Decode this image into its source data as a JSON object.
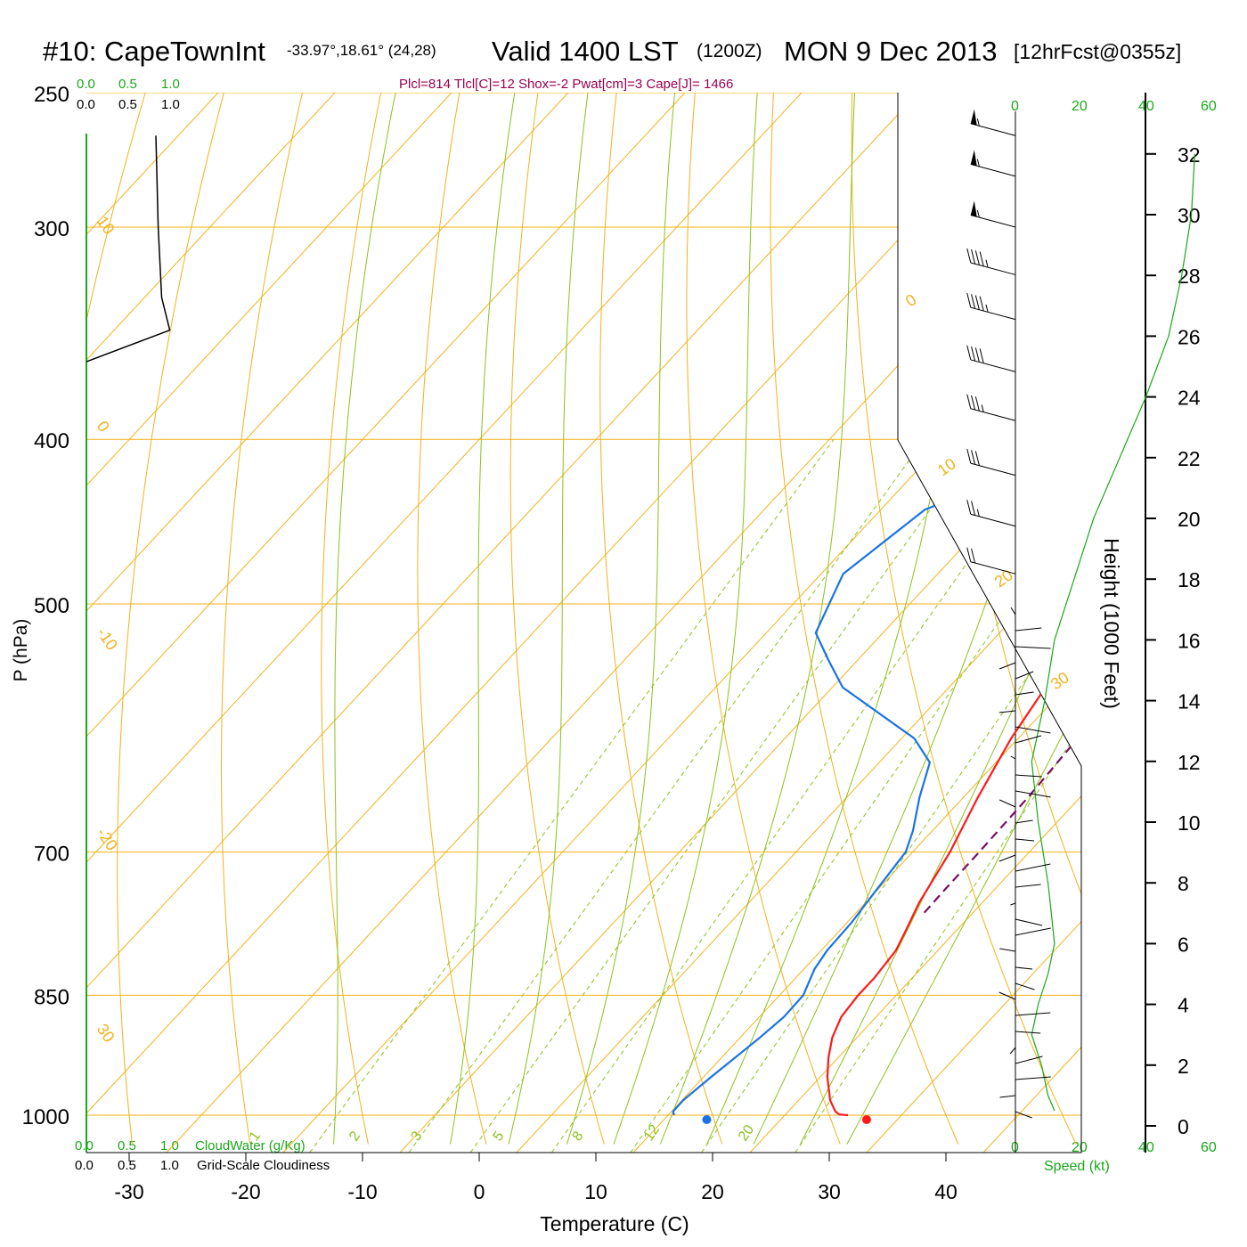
{
  "header": {
    "station": "#10: CapeTownInt",
    "location": "-33.97°,18.61° (24,28)",
    "valid": "Valid 1400 LST",
    "zulu": "(1200Z)",
    "date": "MON 9 Dec 2013",
    "forecast": "[12hrFcst@0355z]"
  },
  "indices": "Plcl=814 Tlcl[C]=12 Shox=-2 Pwat[cm]=3 Cape[J]= 1466",
  "colors": {
    "isobar": "#f2b21a",
    "dry_adiabat": "#f2b21a",
    "moist_adiabat": "#8cc21a",
    "mixing_ratio": "#8cc21a",
    "temperature": "#ff1a1a",
    "dewpoint": "#1a73e6",
    "parcel": "#7a1060",
    "green_text": "#19a819",
    "header_text": "#000000",
    "indices_text": "#990050"
  },
  "cloud_scale": {
    "top_green": [
      "0.0",
      "0.5",
      "1.0"
    ],
    "top_black": [
      "0.0",
      "0.5",
      "1.0"
    ],
    "bottom_green": [
      "0.0",
      "0.5",
      "1.0"
    ],
    "bottom_black": [
      "0.0",
      "0.5",
      "1.0"
    ],
    "cloudwater_label": "CloudWater (g/Kg)",
    "cloudiness_label": "Grid-Scale Cloudiness"
  },
  "wind_speed_scale": {
    "ticks": [
      "0",
      "20",
      "40",
      "60"
    ],
    "label": "Speed (kt)"
  },
  "chart_data": {
    "type": "line",
    "xlabel": "Temperature (C)",
    "ylabel": "P (hPa)",
    "y2label": "Height (1000 Feet)",
    "xlim": [
      -33.5,
      46
    ],
    "ylim": [
      1030,
      250
    ],
    "x_ticks": [
      -30,
      -20,
      -10,
      0,
      10,
      20,
      30,
      40
    ],
    "pressure_ticks": [
      250,
      300,
      400,
      500,
      700,
      850,
      1000
    ],
    "height_ticks": [
      0,
      2,
      4,
      6,
      8,
      10,
      12,
      14,
      16,
      18,
      20,
      22,
      24,
      26,
      28,
      30,
      32
    ],
    "dry_adiabat_labels": [
      "10",
      "0",
      "-10",
      "-20",
      "30",
      "0",
      "10",
      "20",
      "30"
    ],
    "mixing_ratio_labels": [
      "1",
      "2",
      "3",
      "5",
      "8",
      "12",
      "20"
    ],
    "series": [
      {
        "points": [
          {
            "p": 1000,
            "t": 31.6
          },
          {
            "p": 999,
            "t": 30.8
          },
          {
            "p": 995,
            "t": 30.2
          },
          {
            "p": 980,
            "t": 28.8
          },
          {
            "p": 950,
            "t": 26.6
          },
          {
            "p": 925,
            "t": 25.0
          },
          {
            "p": 900,
            "t": 23.6
          },
          {
            "p": 875,
            "t": 22.6
          },
          {
            "p": 850,
            "t": 22.2
          },
          {
            "p": 830,
            "t": 22.1
          },
          {
            "p": 800,
            "t": 21.6
          },
          {
            "p": 780,
            "t": 20.8
          },
          {
            "p": 750,
            "t": 19.5
          },
          {
            "p": 700,
            "t": 17.8
          },
          {
            "p": 650,
            "t": 15.5
          },
          {
            "p": 600,
            "t": 13.3
          },
          {
            "p": 550,
            "t": 11.5
          },
          {
            "p": 500,
            "t": 10.0
          },
          {
            "p": 450,
            "t": 8.3
          },
          {
            "p": 400,
            "t": 6.2
          },
          {
            "p": 350,
            "t": 4.5
          },
          {
            "p": 340,
            "t": 4.0
          },
          {
            "p": 320,
            "t": 1.7
          },
          {
            "p": 300,
            "t": -0.2
          },
          {
            "p": 280,
            "t": -1.2
          },
          {
            "p": 265,
            "t": -2.0
          }
        ]
      },
      {
        "points": [
          {
            "p": 1000,
            "t": 16.7
          },
          {
            "p": 995,
            "t": 16.3
          },
          {
            "p": 980,
            "t": 16.2
          },
          {
            "p": 950,
            "t": 16.6
          },
          {
            "p": 900,
            "t": 17.4
          },
          {
            "p": 875,
            "t": 17.7
          },
          {
            "p": 850,
            "t": 17.5
          },
          {
            "p": 820,
            "t": 16.2
          },
          {
            "p": 800,
            "t": 15.7
          },
          {
            "p": 770,
            "t": 15.4
          },
          {
            "p": 740,
            "t": 14.8
          },
          {
            "p": 700,
            "t": 14.0
          },
          {
            "p": 680,
            "t": 12.8
          },
          {
            "p": 650,
            "t": 10.5
          },
          {
            "p": 620,
            "t": 8.4
          },
          {
            "p": 600,
            "t": 5.0
          },
          {
            "p": 560,
            "t": -5.5
          },
          {
            "p": 540,
            "t": -9.0
          },
          {
            "p": 520,
            "t": -12.5
          },
          {
            "p": 480,
            "t": -15.2
          },
          {
            "p": 440,
            "t": -13.7
          },
          {
            "p": 400,
            "t": -3.9
          },
          {
            "p": 370,
            "t": 1.3
          },
          {
            "p": 360,
            "t": 1.2
          },
          {
            "p": 345,
            "t": 1.2
          },
          {
            "p": 320,
            "t": -1.0
          },
          {
            "p": 300,
            "t": -2.8
          },
          {
            "p": 280,
            "t": -4.3
          },
          {
            "p": 265,
            "t": -5.8
          }
        ]
      },
      {
        "points": [
          {
            "p": 760,
            "t": 20.8
          },
          {
            "p": 740,
            "t": 20.6
          },
          {
            "p": 700,
            "t": 20.3
          },
          {
            "p": 650,
            "t": 19.8
          },
          {
            "p": 600,
            "t": 19.0
          },
          {
            "p": 550,
            "t": 17.8
          },
          {
            "p": 500,
            "t": 15.8
          },
          {
            "p": 450,
            "t": 13.2
          },
          {
            "p": 400,
            "t": 10.2
          },
          {
            "p": 350,
            "t": 7.0
          },
          {
            "p": 300,
            "t": 4.0
          },
          {
            "p": 265,
            "t": 2.0
          }
        ]
      }
    ],
    "dewpoint_surface_marker": {
      "p": 1000,
      "t": 19.5
    },
    "temperature_surface_marker": {
      "p": 1000,
      "t": 33.2
    },
    "wind_barbs": [
      {
        "p": 265,
        "speed_kt": 55,
        "dir": 285
      },
      {
        "p": 280,
        "speed_kt": 55,
        "dir": 285
      },
      {
        "p": 300,
        "speed_kt": 55,
        "dir": 285
      },
      {
        "p": 320,
        "speed_kt": 45,
        "dir": 285
      },
      {
        "p": 340,
        "speed_kt": 45,
        "dir": 285
      },
      {
        "p": 365,
        "speed_kt": 40,
        "dir": 285
      },
      {
        "p": 390,
        "speed_kt": 35,
        "dir": 280
      },
      {
        "p": 420,
        "speed_kt": 30,
        "dir": 280
      },
      {
        "p": 450,
        "speed_kt": 25,
        "dir": 280
      },
      {
        "p": 480,
        "speed_kt": 20,
        "dir": 280
      }
    ],
    "wind_profile": [
      {
        "h": 0.5,
        "speed": 12
      },
      {
        "h": 1.0,
        "speed": 10
      },
      {
        "h": 2.0,
        "speed": 8
      },
      {
        "h": 3.0,
        "speed": 5
      },
      {
        "h": 4.0,
        "speed": 7
      },
      {
        "h": 5.0,
        "speed": 10
      },
      {
        "h": 6.0,
        "speed": 12
      },
      {
        "h": 7.0,
        "speed": 11
      },
      {
        "h": 8.0,
        "speed": 10
      },
      {
        "h": 10.0,
        "speed": 7
      },
      {
        "h": 12.0,
        "speed": 5
      },
      {
        "h": 14.0,
        "speed": 9
      },
      {
        "h": 16.0,
        "speed": 12
      },
      {
        "h": 18.0,
        "speed": 18
      },
      {
        "h": 20.0,
        "speed": 24
      },
      {
        "h": 22.0,
        "speed": 32
      },
      {
        "h": 24.0,
        "speed": 40
      },
      {
        "h": 26.0,
        "speed": 47
      },
      {
        "h": 28.0,
        "speed": 51
      },
      {
        "h": 30.0,
        "speed": 54
      },
      {
        "h": 32.0,
        "speed": 55
      }
    ],
    "cloudiness_profile": [
      {
        "p": 265,
        "v": 0.6
      },
      {
        "p": 300,
        "v": 0.62
      },
      {
        "p": 330,
        "v": 0.65
      },
      {
        "p": 345,
        "v": 0.72
      },
      {
        "p": 360,
        "v": 0.0
      }
    ]
  }
}
